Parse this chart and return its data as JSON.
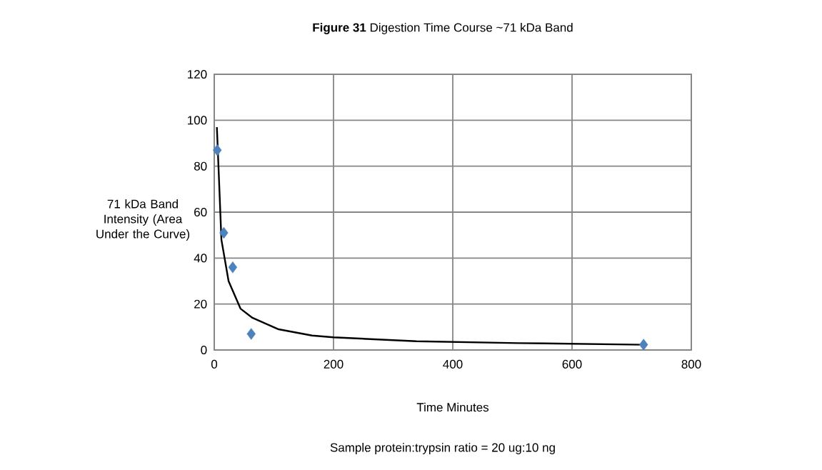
{
  "chart_data": {
    "type": "scatter",
    "title": "**Figure 31** Digestion Time Course  ~71 kDa Band",
    "xlabel": "Time Minutes",
    "ylabel": "71 kDa Band Intensity (Area Under the Curve)",
    "annotations": [
      "Sample protein:trypsin ratio = 20 ug:10 ng"
    ],
    "series": [
      {
        "color": "#4f81bd",
        "marker": "diamond",
        "x": [
          5,
          16,
          31,
          62,
          720
        ],
        "values": [
          87,
          51,
          36,
          7,
          2.3
        ]
      },
      {
        "type": "line",
        "color": "#000000",
        "marker": "none",
        "x": [
          4.4,
          8,
          12,
          24,
          44,
          64,
          108,
          164,
          200,
          339,
          510,
          720
        ],
        "values": [
          97,
          74,
          48,
          30,
          18,
          14,
          9,
          6.3,
          5.5,
          3.8,
          3,
          2.3
        ]
      }
    ],
    "xlim": [
      0,
      800
    ],
    "ylim": [
      0,
      120
    ],
    "xticks": [
      0,
      200,
      400,
      600,
      800
    ],
    "yticks": [
      0,
      20,
      40,
      60,
      80,
      100,
      120
    ],
    "grid": true
  }
}
